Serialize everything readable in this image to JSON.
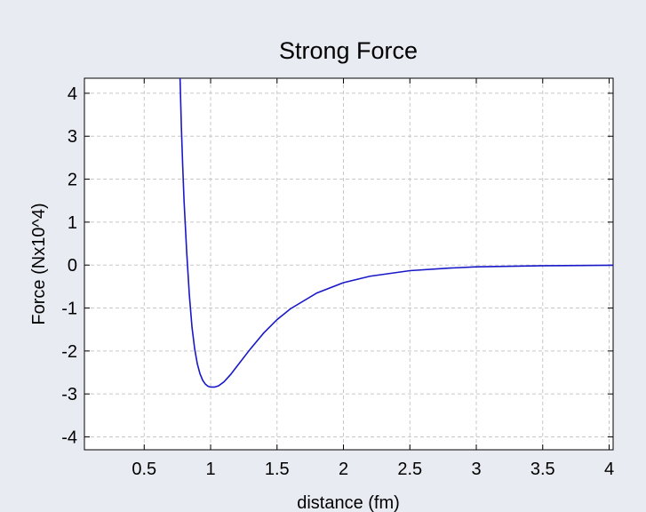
{
  "chart_data": {
    "type": "line",
    "title": "Strong Force",
    "xlabel": "distance (fm)",
    "ylabel": "Force (Nx10^4)",
    "xlim": [
      0.05,
      4.03
    ],
    "ylim": [
      -4.3,
      4.35
    ],
    "xticks": [
      0.5,
      1,
      1.5,
      2,
      2.5,
      3,
      3.5,
      4
    ],
    "xtick_labels": [
      "0.5",
      "1",
      "1.5",
      "2",
      "2.5",
      "3",
      "3.5",
      "4"
    ],
    "yticks": [
      4,
      3,
      2,
      1,
      0,
      -1,
      -2,
      -3,
      -4
    ],
    "ytick_labels": [
      "4",
      "3",
      "2",
      "1",
      "0",
      "-1",
      "-2",
      "-3",
      "-4"
    ],
    "grid": true,
    "series": [
      {
        "color": "#1818c8",
        "x": [
          0.77,
          0.78,
          0.79,
          0.8,
          0.82,
          0.84,
          0.86,
          0.88,
          0.9,
          0.92,
          0.94,
          0.96,
          0.98,
          1.0,
          1.03,
          1.06,
          1.1,
          1.15,
          1.2,
          1.3,
          1.4,
          1.5,
          1.6,
          1.8,
          2.0,
          2.2,
          2.5,
          2.8,
          3.0,
          3.5,
          4.0,
          4.03
        ],
        "y": [
          4.35,
          3.2,
          2.3,
          1.5,
          0.3,
          -0.7,
          -1.45,
          -1.95,
          -2.3,
          -2.53,
          -2.68,
          -2.77,
          -2.82,
          -2.84,
          -2.84,
          -2.81,
          -2.72,
          -2.55,
          -2.35,
          -1.95,
          -1.58,
          -1.27,
          -1.02,
          -0.65,
          -0.41,
          -0.26,
          -0.13,
          -0.07,
          -0.04,
          -0.015,
          -0.005,
          -0.004
        ]
      }
    ]
  }
}
